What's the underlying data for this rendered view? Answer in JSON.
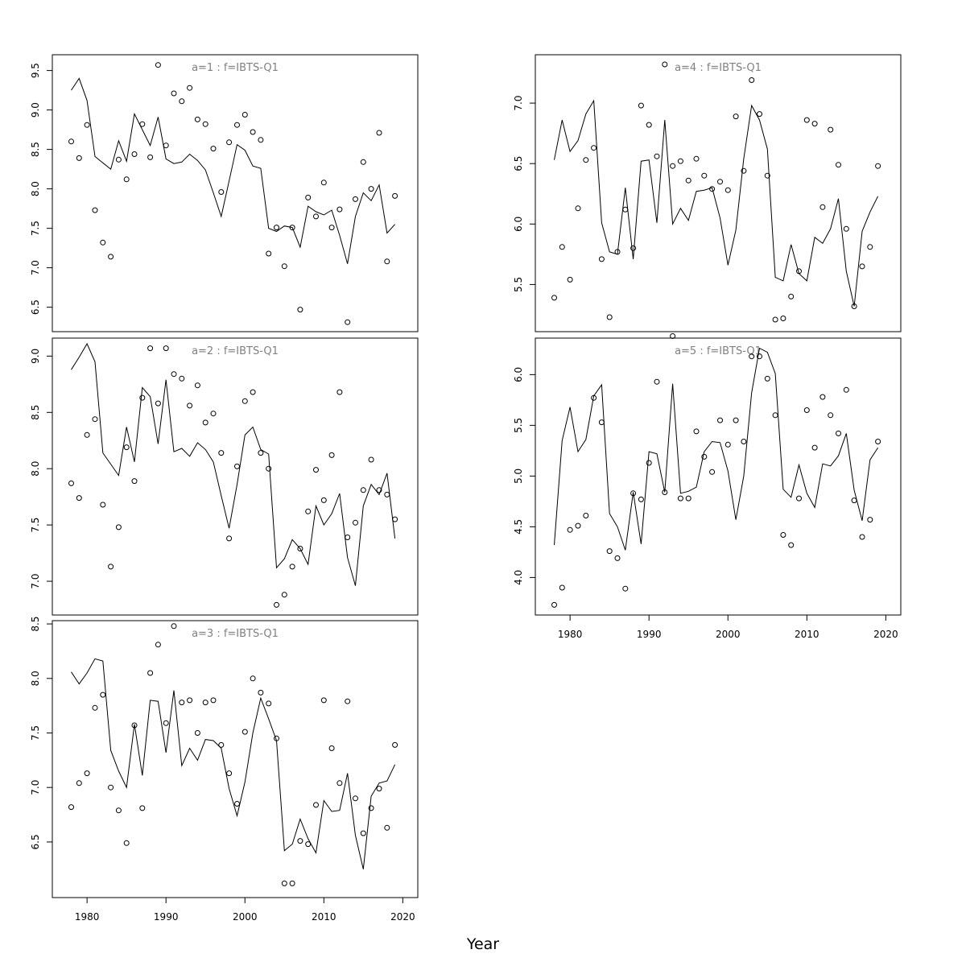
{
  "xlabel": "Year",
  "chart_data": [
    {
      "type": "line",
      "title": "a=1 : f=IBTS-Q1",
      "xlim": [
        1975.6,
        2021.9
      ],
      "ylim": [
        6.19,
        9.7
      ],
      "xticks": [
        1980,
        1990,
        2000,
        2010,
        2020
      ],
      "yticks": [
        6.5,
        7.0,
        7.5,
        8.0,
        8.5,
        9.0,
        9.5
      ],
      "show_x_labels": false,
      "x": [
        1978,
        1979,
        1980,
        1981,
        1982,
        1983,
        1984,
        1985,
        1986,
        1987,
        1988,
        1989,
        1990,
        1991,
        1992,
        1993,
        1994,
        1995,
        1996,
        1997,
        1998,
        1999,
        2000,
        2001,
        2002,
        2003,
        2004,
        2005,
        2006,
        2007,
        2008,
        2009,
        2010,
        2011,
        2012,
        2013,
        2014,
        2015,
        2016,
        2017,
        2018,
        2019
      ],
      "series": [
        {
          "style": "line",
          "values": [
            9.25,
            9.4,
            9.12,
            8.41,
            8.33,
            8.25,
            8.61,
            8.35,
            8.95,
            8.75,
            8.55,
            8.91,
            8.38,
            8.32,
            8.34,
            8.44,
            8.36,
            8.24,
            7.95,
            7.65,
            8.1,
            8.56,
            8.49,
            8.29,
            8.26,
            7.5,
            7.46,
            7.53,
            7.51,
            7.26,
            7.78,
            7.71,
            7.67,
            7.73,
            7.41,
            7.05,
            7.65,
            7.95,
            7.85,
            8.05,
            7.44,
            7.55
          ]
        },
        {
          "style": "points",
          "values": [
            8.6,
            8.39,
            8.81,
            7.73,
            7.32,
            7.14,
            8.37,
            8.12,
            8.44,
            8.82,
            8.4,
            9.57,
            8.55,
            9.21,
            9.11,
            9.28,
            8.88,
            8.82,
            8.51,
            7.96,
            8.59,
            8.81,
            8.94,
            8.72,
            8.62,
            7.18,
            7.51,
            7.02,
            7.51,
            6.47,
            7.89,
            7.65,
            8.08,
            7.51,
            7.74,
            6.31,
            7.87,
            8.34,
            8.0,
            8.71,
            7.08,
            7.91
          ]
        }
      ]
    },
    {
      "type": "line",
      "title": "a=2 : f=IBTS-Q1",
      "xlim": [
        1975.6,
        2021.9
      ],
      "ylim": [
        6.7,
        9.16
      ],
      "xticks": [
        1980,
        1990,
        2000,
        2010,
        2020
      ],
      "yticks": [
        7.0,
        7.5,
        8.0,
        8.5,
        9.0
      ],
      "show_x_labels": false,
      "x": [
        1978,
        1979,
        1980,
        1981,
        1982,
        1983,
        1984,
        1985,
        1986,
        1987,
        1988,
        1989,
        1990,
        1991,
        1992,
        1993,
        1994,
        1995,
        1996,
        1997,
        1998,
        1999,
        2000,
        2001,
        2002,
        2003,
        2004,
        2005,
        2006,
        2007,
        2008,
        2009,
        2010,
        2011,
        2012,
        2013,
        2014,
        2015,
        2016,
        2017,
        2018,
        2019
      ],
      "series": [
        {
          "style": "line",
          "values": [
            8.88,
            8.99,
            9.11,
            8.95,
            8.14,
            8.04,
            7.94,
            8.37,
            8.06,
            8.72,
            8.64,
            8.22,
            8.79,
            8.15,
            8.18,
            8.11,
            8.23,
            8.17,
            8.06,
            7.76,
            7.47,
            7.86,
            8.3,
            8.37,
            8.17,
            8.13,
            7.12,
            7.2,
            7.37,
            7.29,
            7.15,
            7.67,
            7.5,
            7.6,
            7.78,
            7.21,
            6.96,
            7.67,
            7.86,
            7.77,
            7.96,
            7.38
          ]
        },
        {
          "style": "points",
          "values": [
            7.87,
            7.74,
            8.3,
            8.44,
            7.68,
            7.13,
            7.48,
            8.19,
            7.89,
            8.63,
            9.07,
            8.58,
            9.07,
            8.84,
            8.8,
            8.56,
            8.74,
            8.41,
            8.49,
            8.14,
            7.38,
            8.02,
            8.6,
            8.68,
            8.14,
            8.0,
            6.79,
            6.88,
            7.13,
            7.29,
            7.62,
            7.99,
            7.72,
            8.12,
            8.68,
            7.39,
            7.52,
            7.81,
            8.08,
            7.81,
            7.77,
            7.55
          ]
        }
      ]
    },
    {
      "type": "line",
      "title": "a=3 : f=IBTS-Q1",
      "xlim": [
        1975.6,
        2021.9
      ],
      "ylim": [
        5.99,
        8.53
      ],
      "xticks": [
        1980,
        1990,
        2000,
        2010,
        2020
      ],
      "yticks": [
        6.5,
        7.0,
        7.5,
        8.0,
        8.5
      ],
      "show_x_labels": true,
      "x": [
        1978,
        1979,
        1980,
        1981,
        1982,
        1983,
        1984,
        1985,
        1986,
        1987,
        1988,
        1989,
        1990,
        1991,
        1992,
        1993,
        1994,
        1995,
        1996,
        1997,
        1998,
        1999,
        2000,
        2001,
        2002,
        2003,
        2004,
        2005,
        2006,
        2007,
        2008,
        2009,
        2010,
        2011,
        2012,
        2013,
        2014,
        2015,
        2016,
        2017,
        2018,
        2019
      ],
      "series": [
        {
          "style": "line",
          "values": [
            8.06,
            7.95,
            8.05,
            8.18,
            8.16,
            7.34,
            7.15,
            7.0,
            7.58,
            7.11,
            7.8,
            7.79,
            7.32,
            7.89,
            7.2,
            7.36,
            7.25,
            7.44,
            7.43,
            7.36,
            6.99,
            6.74,
            7.05,
            7.5,
            7.82,
            7.63,
            7.43,
            6.42,
            6.48,
            6.71,
            6.53,
            6.4,
            6.88,
            6.78,
            6.79,
            7.13,
            6.56,
            6.25,
            6.92,
            7.04,
            7.06,
            7.21
          ]
        },
        {
          "style": "points",
          "values": [
            6.82,
            7.04,
            7.13,
            7.73,
            7.85,
            7.0,
            6.79,
            6.49,
            7.57,
            6.81,
            8.05,
            8.31,
            7.59,
            8.48,
            7.78,
            7.8,
            7.5,
            7.78,
            7.8,
            7.39,
            7.13,
            6.85,
            7.51,
            8.0,
            7.87,
            7.77,
            7.45,
            6.12,
            6.12,
            6.51,
            6.48,
            6.84,
            7.8,
            7.36,
            7.04,
            7.79,
            6.9,
            6.58,
            6.81,
            6.99,
            6.63,
            7.39
          ]
        }
      ]
    },
    {
      "type": "line",
      "title": "a=4 : f=IBTS-Q1",
      "xlim": [
        1975.6,
        2021.9
      ],
      "ylim": [
        5.11,
        7.4
      ],
      "xticks": [
        1980,
        1990,
        2000,
        2010,
        2020
      ],
      "yticks": [
        5.5,
        6.0,
        6.5,
        7.0
      ],
      "show_x_labels": false,
      "x": [
        1978,
        1979,
        1980,
        1981,
        1982,
        1983,
        1984,
        1985,
        1986,
        1987,
        1988,
        1989,
        1990,
        1991,
        1992,
        1993,
        1994,
        1995,
        1996,
        1997,
        1998,
        1999,
        2000,
        2001,
        2002,
        2003,
        2004,
        2005,
        2006,
        2007,
        2008,
        2009,
        2010,
        2011,
        2012,
        2013,
        2014,
        2015,
        2016,
        2017,
        2018,
        2019
      ],
      "series": [
        {
          "style": "line",
          "values": [
            6.53,
            6.86,
            6.6,
            6.69,
            6.91,
            7.02,
            6.01,
            5.77,
            5.75,
            6.3,
            5.71,
            6.52,
            6.53,
            6.01,
            6.86,
            6.0,
            6.13,
            6.03,
            6.27,
            6.28,
            6.3,
            6.05,
            5.66,
            5.95,
            6.54,
            6.98,
            6.86,
            6.62,
            5.56,
            5.53,
            5.83,
            5.59,
            5.53,
            5.89,
            5.84,
            5.96,
            6.21,
            5.61,
            5.32,
            5.94,
            6.1,
            6.23
          ]
        },
        {
          "style": "points",
          "values": [
            5.39,
            5.81,
            5.54,
            6.13,
            6.53,
            6.63,
            5.71,
            5.23,
            5.77,
            6.12,
            5.8,
            6.98,
            6.82,
            6.56,
            7.32,
            6.48,
            6.52,
            6.36,
            6.54,
            6.4,
            6.29,
            6.35,
            6.28,
            6.89,
            6.44,
            7.19,
            6.91,
            6.4,
            5.21,
            5.22,
            5.4,
            5.61,
            6.86,
            6.83,
            6.14,
            6.78,
            6.49,
            5.96,
            5.32,
            5.65,
            5.81,
            6.48
          ]
        }
      ]
    },
    {
      "type": "line",
      "title": "a=5 : f=IBTS-Q1",
      "xlim": [
        1975.6,
        2021.9
      ],
      "ylim": [
        3.63,
        6.36
      ],
      "xticks": [
        1980,
        1990,
        2000,
        2010,
        2020
      ],
      "yticks": [
        4.0,
        4.5,
        5.0,
        5.5,
        6.0
      ],
      "show_x_labels": true,
      "x": [
        1978,
        1979,
        1980,
        1981,
        1982,
        1983,
        1984,
        1985,
        1986,
        1987,
        1988,
        1989,
        1990,
        1991,
        1992,
        1993,
        1994,
        1995,
        1996,
        1997,
        1998,
        1999,
        2000,
        2001,
        2002,
        2003,
        2004,
        2005,
        2006,
        2007,
        2008,
        2009,
        2010,
        2011,
        2012,
        2013,
        2014,
        2015,
        2016,
        2017,
        2018,
        2019
      ],
      "series": [
        {
          "style": "line",
          "values": [
            4.32,
            5.35,
            5.68,
            5.24,
            5.36,
            5.79,
            5.9,
            4.63,
            4.5,
            4.27,
            4.84,
            4.33,
            5.24,
            5.22,
            4.84,
            5.91,
            4.83,
            4.85,
            4.89,
            5.24,
            5.34,
            5.33,
            5.05,
            4.57,
            5.0,
            5.82,
            6.26,
            6.22,
            6.01,
            4.87,
            4.79,
            5.11,
            4.83,
            4.69,
            5.12,
            5.1,
            5.2,
            5.42,
            4.86,
            4.56,
            5.16,
            5.28
          ]
        },
        {
          "style": "points",
          "values": [
            3.73,
            3.9,
            4.47,
            4.51,
            4.61,
            5.77,
            5.53,
            4.26,
            4.19,
            3.89,
            4.83,
            4.77,
            5.13,
            5.93,
            4.84,
            6.38,
            4.78,
            4.78,
            5.44,
            5.19,
            5.04,
            5.55,
            5.31,
            5.55,
            5.34,
            6.18,
            6.18,
            5.96,
            5.6,
            4.42,
            4.32,
            4.78,
            5.65,
            5.28,
            5.78,
            5.6,
            5.42,
            5.85,
            4.76,
            4.4,
            4.57,
            5.34
          ]
        }
      ]
    }
  ]
}
